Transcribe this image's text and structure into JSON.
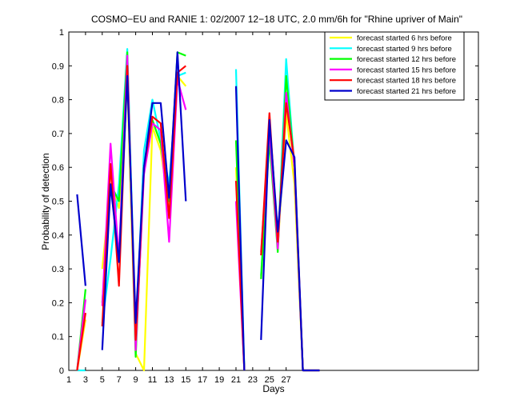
{
  "chart_data": {
    "type": "line",
    "title": "COSMO−EU and RANIE 1: 02/2007 12−18 UTC, 2.0 mm/6h for \"Rhine upriver of Main\"",
    "xlabel": "Days",
    "ylabel": "Probability of detection",
    "xlim": [
      1,
      50
    ],
    "ylim": [
      0,
      1
    ],
    "xticks": [
      1,
      3,
      5,
      7,
      9,
      11,
      13,
      15,
      17,
      19,
      21,
      23,
      25,
      27
    ],
    "yticks": [
      0,
      0.1,
      0.2,
      0.3,
      0.4,
      0.5,
      0.6,
      0.7,
      0.8,
      0.9,
      1
    ],
    "ytick_labels": [
      "0",
      "0.1",
      "0.2",
      "0.3",
      "0.4",
      "0.5",
      "0.6",
      "0.7",
      "0.8",
      "0.9",
      "1"
    ],
    "grid": false,
    "legend_position": "top-right",
    "series": [
      {
        "name": "forecast started 6 hrs before",
        "color": "#ffff00",
        "segments": [
          [
            [
              2,
              0
            ],
            [
              3,
              0.15
            ]
          ],
          [
            [
              5,
              0.3
            ],
            [
              6,
              0.55
            ],
            [
              7,
              0.48
            ],
            [
              8,
              0.85
            ],
            [
              9,
              0.05
            ],
            [
              10,
              0
            ],
            [
              11,
              0.72
            ],
            [
              12,
              0.65
            ],
            [
              13,
              0.48
            ],
            [
              14,
              0.87
            ],
            [
              15,
              0.84
            ]
          ],
          [
            [
              21,
              0.6
            ],
            [
              22,
              0
            ]
          ],
          [
            [
              24,
              0.28
            ],
            [
              25,
              0.7
            ],
            [
              26,
              0.36
            ],
            [
              27,
              0.76
            ],
            [
              28,
              0.55
            ],
            [
              29,
              0
            ],
            [
              31,
              0
            ]
          ]
        ]
      },
      {
        "name": "forecast started 9 hrs before",
        "color": "#00ffff",
        "segments": [
          [
            [
              2,
              0
            ],
            [
              3,
              0
            ]
          ],
          [
            [
              5,
              0.14
            ],
            [
              6,
              0.33
            ],
            [
              7,
              0.55
            ],
            [
              8,
              0.95
            ],
            [
              9,
              0.1
            ],
            [
              10,
              0.65
            ],
            [
              11,
              0.8
            ],
            [
              12,
              0.68
            ],
            [
              13,
              0.55
            ],
            [
              14,
              0.87
            ],
            [
              15,
              0.88
            ]
          ],
          [
            [
              21,
              0.89
            ],
            [
              22,
              0
            ]
          ],
          [
            [
              24,
              0.28
            ],
            [
              25,
              0.69
            ],
            [
              26,
              0.36
            ],
            [
              27,
              0.92
            ],
            [
              28,
              0.6
            ],
            [
              29,
              0
            ],
            [
              31,
              0
            ]
          ]
        ]
      },
      {
        "name": "forecast started 12 hrs before",
        "color": "#00ff00",
        "segments": [
          [
            [
              2,
              0
            ],
            [
              3,
              0.24
            ]
          ],
          [
            [
              5,
              0.2
            ],
            [
              6,
              0.55
            ],
            [
              7,
              0.5
            ],
            [
              8,
              0.94
            ],
            [
              9,
              0.04
            ],
            [
              10,
              0.6
            ],
            [
              11,
              0.74
            ],
            [
              12,
              0.67
            ],
            [
              13,
              0.5
            ],
            [
              14,
              0.94
            ],
            [
              15,
              0.93
            ]
          ],
          [
            [
              21,
              0.68
            ],
            [
              22,
              0
            ]
          ],
          [
            [
              24,
              0.27
            ],
            [
              25,
              0.68
            ],
            [
              26,
              0.35
            ],
            [
              27,
              0.87
            ],
            [
              28,
              0.6
            ],
            [
              29,
              0
            ],
            [
              31,
              0
            ]
          ]
        ]
      },
      {
        "name": "forecast started 15 hrs before",
        "color": "#ff00ff",
        "segments": [
          [
            [
              2,
              0
            ],
            [
              3,
              0.21
            ]
          ],
          [
            [
              5,
              0.19
            ],
            [
              6,
              0.67
            ],
            [
              7,
              0.33
            ],
            [
              8,
              0.93
            ],
            [
              9,
              0.06
            ],
            [
              10,
              0.58
            ],
            [
              11,
              0.73
            ],
            [
              12,
              0.71
            ],
            [
              13,
              0.38
            ],
            [
              14,
              0.86
            ],
            [
              15,
              0.77
            ]
          ],
          [
            [
              21,
              0.5
            ],
            [
              22,
              0
            ]
          ],
          [
            [
              24,
              0.35
            ],
            [
              25,
              0.71
            ],
            [
              26,
              0.36
            ],
            [
              27,
              0.82
            ],
            [
              28,
              0.6
            ],
            [
              29,
              0
            ],
            [
              31,
              0
            ]
          ]
        ]
      },
      {
        "name": "forecast started 18 hrs before",
        "color": "#ff0000",
        "segments": [
          [
            [
              2,
              0
            ],
            [
              3,
              0.17
            ]
          ],
          [
            [
              5,
              0.13
            ],
            [
              6,
              0.61
            ],
            [
              7,
              0.25
            ],
            [
              8,
              0.9
            ],
            [
              9,
              0.09
            ],
            [
              10,
              0.6
            ],
            [
              11,
              0.75
            ],
            [
              12,
              0.73
            ],
            [
              13,
              0.45
            ],
            [
              14,
              0.88
            ],
            [
              15,
              0.9
            ]
          ],
          [
            [
              21,
              0.56
            ],
            [
              22,
              0
            ]
          ],
          [
            [
              24,
              0.34
            ],
            [
              25,
              0.76
            ],
            [
              26,
              0.38
            ],
            [
              27,
              0.79
            ],
            [
              28,
              0.62
            ],
            [
              29,
              0
            ],
            [
              31,
              0
            ]
          ]
        ]
      },
      {
        "name": "forecast started 21 hrs before",
        "color": "#0000cc",
        "segments": [
          [
            [
              2,
              0.52
            ],
            [
              3,
              0.25
            ]
          ],
          [
            [
              5,
              0.06
            ],
            [
              6,
              0.55
            ],
            [
              7,
              0.32
            ],
            [
              8,
              0.87
            ],
            [
              9,
              0.14
            ],
            [
              10,
              0.6
            ],
            [
              11,
              0.79
            ],
            [
              12,
              0.79
            ],
            [
              13,
              0.51
            ],
            [
              14,
              0.94
            ],
            [
              15,
              0.5
            ]
          ],
          [
            [
              21,
              0.84
            ],
            [
              22,
              0
            ]
          ],
          [
            [
              24,
              0.09
            ],
            [
              25,
              0.74
            ],
            [
              26,
              0.41
            ],
            [
              27,
              0.68
            ],
            [
              28,
              0.63
            ],
            [
              29,
              0
            ],
            [
              31,
              0
            ]
          ]
        ]
      }
    ]
  }
}
